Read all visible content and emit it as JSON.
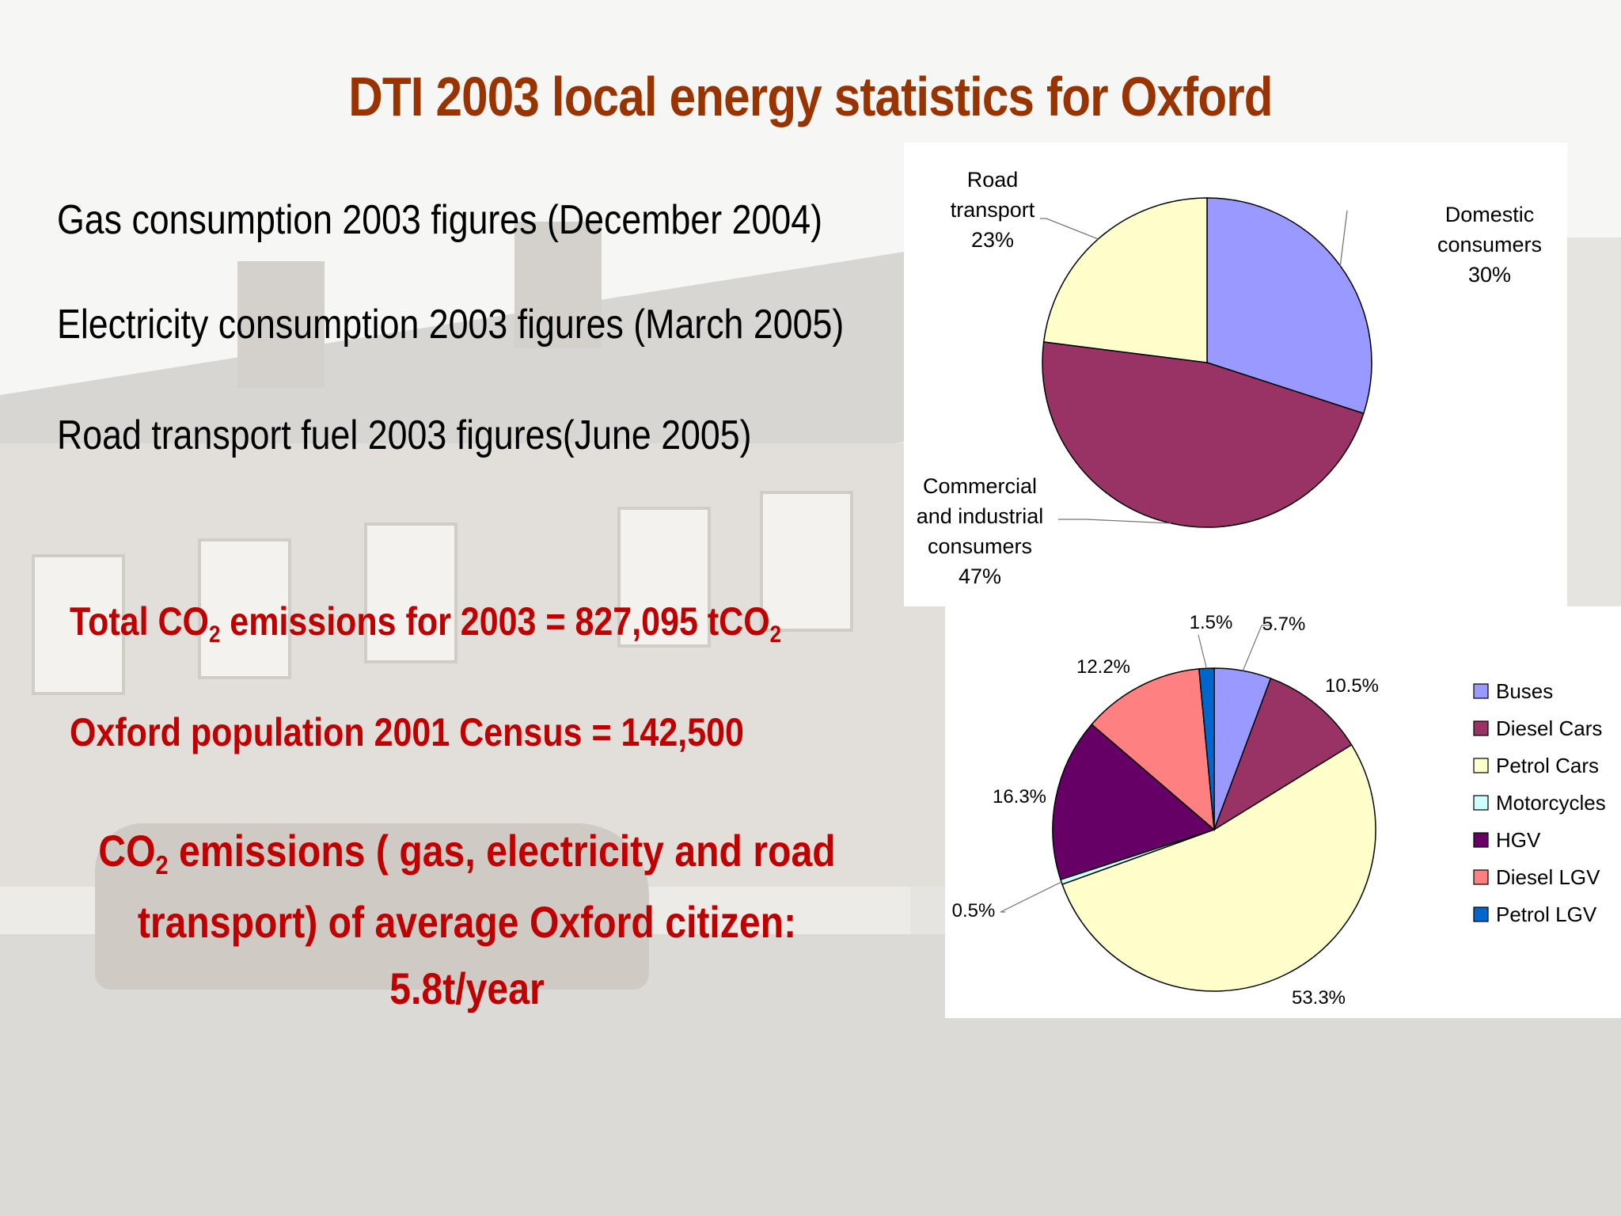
{
  "title": "DTI 2003 local energy statistics for Oxford",
  "sources": [
    "Gas consumption 2003 figures (December 2004)",
    "Electricity consumption 2003 figures (March 2005)",
    "Road transport fuel 2003 figures(June 2005)"
  ],
  "stats": {
    "total_pre": "Total CO",
    "total_sub": "2",
    "total_mid": " emissions for 2003 = 827,095 tCO",
    "total_sub2": "2",
    "population": "Oxford population 2001 Census = 142,500",
    "avg_l1_pre": "CO",
    "avg_l1_sub": "2",
    "avg_l1_post": " emissions ( gas, electricity and road",
    "avg_l2": "transport) of average Oxford citizen:",
    "avg_l3": "5.8t/year"
  },
  "chart_data": [
    {
      "type": "pie",
      "slices": [
        {
          "label": [
            "Domestic",
            "consumers"
          ],
          "value": 30,
          "pct": "30%",
          "color": "#9999ff"
        },
        {
          "label": [
            "Commercial",
            "and industrial",
            "consumers"
          ],
          "value": 47,
          "pct": "47%",
          "color": "#993366"
        },
        {
          "label": [
            "Road",
            "transport"
          ],
          "value": 23,
          "pct": "23%",
          "color": "#ffffcc"
        }
      ]
    },
    {
      "type": "pie",
      "legend_position": "right",
      "slices": [
        {
          "name": "Buses",
          "value": 5.7,
          "label": "5.7%",
          "color": "#9999ff"
        },
        {
          "name": "Diesel Cars",
          "value": 10.5,
          "label": "10.5%",
          "color": "#993366"
        },
        {
          "name": "Petrol Cars",
          "value": 53.3,
          "label": "53.3%",
          "color": "#ffffcc"
        },
        {
          "name": "Motorcycles",
          "value": 0.5,
          "label": "0.5%",
          "color": "#ccffff"
        },
        {
          "name": "HGV",
          "value": 16.3,
          "label": "16.3%",
          "color": "#660066"
        },
        {
          "name": "Diesel LGV",
          "value": 12.2,
          "label": "12.2%",
          "color": "#ff8080"
        },
        {
          "name": "Petrol LGV",
          "value": 1.5,
          "label": "1.5%",
          "color": "#0066cc"
        }
      ]
    }
  ]
}
